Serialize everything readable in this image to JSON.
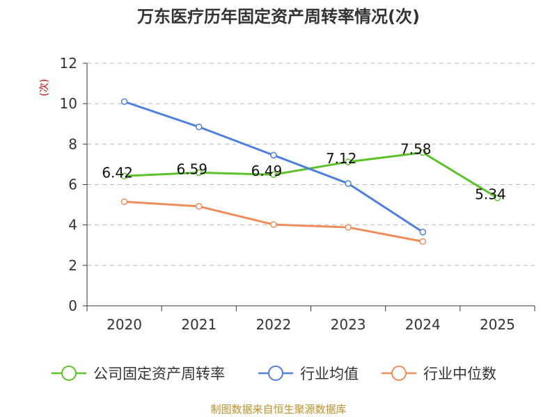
{
  "chart_data": {
    "type": "line",
    "title": "万东医疗历年固定资产周转率情况(次)",
    "ylabel": "(次)",
    "xlabel": "",
    "categories": [
      "2020",
      "2021",
      "2022",
      "2023",
      "2024",
      "2025"
    ],
    "ylim": [
      0,
      12
    ],
    "yticks": [
      0,
      2,
      4,
      6,
      8,
      10,
      12
    ],
    "grid": true,
    "legend_position": "bottom",
    "series": [
      {
        "name": "公司固定资产周转率",
        "color": "#5cc22a",
        "values": [
          6.42,
          6.59,
          6.49,
          7.12,
          7.58,
          5.34
        ],
        "data_labels": [
          "6.42",
          "6.59",
          "6.49",
          "7.12",
          "7.58",
          "5.34"
        ]
      },
      {
        "name": "行业均值",
        "color": "#4f7fdc",
        "values": [
          10.1,
          8.85,
          7.45,
          6.05,
          3.65,
          null
        ]
      },
      {
        "name": "行业中位数",
        "color": "#f08c5a",
        "values": [
          5.15,
          4.92,
          4.02,
          3.88,
          3.18,
          null
        ]
      }
    ],
    "source": "制图数据来自恒生聚源数据库"
  }
}
